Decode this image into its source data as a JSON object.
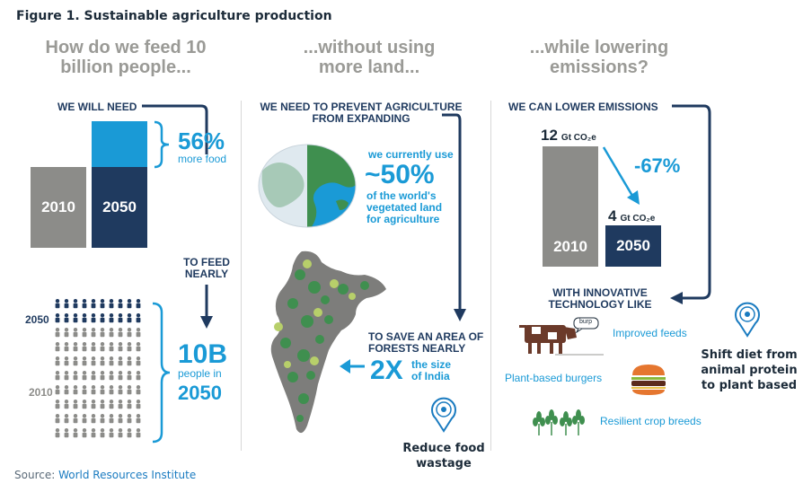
{
  "figure_title": "Figure 1. Sustainable agriculture production",
  "col1": {
    "heading": "How do we feed 10 billion people...",
    "need_label": "WE WILL NEED",
    "bar_2010": "2010",
    "bar_2050": "2050",
    "pct": "56%",
    "pct_sub": "more food",
    "to_feed": "TO FEED NEARLY",
    "year_2050": "2050",
    "year_2010": "2010",
    "big": "10B",
    "big_sub1": "people in",
    "big_sub2": "2050"
  },
  "col2": {
    "heading": "...without using more land...",
    "prevent": "WE NEED TO PREVENT AGRICULTURE FROM EXPANDING",
    "use_pre": "we currently use",
    "use_pct": "~50%",
    "use_post": "of the world's vegetated land for agriculture",
    "save": "TO SAVE AN AREA OF FORESTS NEARLY",
    "twox": "2X",
    "size": "the size of India",
    "pin_label": "Reduce food wastage"
  },
  "col3": {
    "heading": "...while lowering emissions?",
    "lower": "WE CAN LOWER EMISSIONS",
    "val_2010": "12",
    "val_2050": "4",
    "unit": "Gt CO₂e",
    "pct": "-67%",
    "bar_2010": "2010",
    "bar_2050": "2050",
    "innov": "WITH INNOVATIVE TECHNOLOGY LIKE",
    "burp": "burp",
    "feeds": "Improved feeds",
    "burgers": "Plant-based burgers",
    "crops": "Resilient crop breeds",
    "pin_label": "Shift diet from animal protein to plant based"
  },
  "source_label": "Source:",
  "source_link": "World Resources Institute",
  "colors": {
    "navy": "#1f3a5f",
    "cyan": "#1a9ad6",
    "grey": "#8c8c89",
    "green": "#3f8f4f"
  }
}
